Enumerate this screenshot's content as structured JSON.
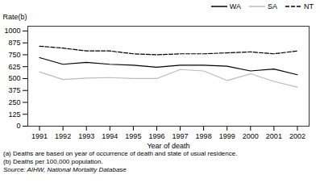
{
  "chart_data": {
    "type": "line",
    "x": [
      1991,
      1992,
      1993,
      1994,
      1995,
      1996,
      1997,
      1998,
      1999,
      2000,
      2001,
      2002
    ],
    "series": [
      {
        "name": "WA",
        "color": "#000000",
        "line_style": "solid",
        "values": [
          720,
          650,
          670,
          650,
          640,
          620,
          640,
          640,
          630,
          580,
          600,
          540
        ]
      },
      {
        "name": "SA",
        "color": "#bbbbbb",
        "line_style": "solid",
        "values": [
          570,
          490,
          505,
          510,
          500,
          500,
          595,
          580,
          480,
          550,
          470,
          410
        ]
      },
      {
        "name": "NT",
        "color": "#000000",
        "line_style": "dashed",
        "values": [
          840,
          820,
          790,
          790,
          760,
          750,
          760,
          760,
          770,
          780,
          760,
          790
        ]
      }
    ],
    "xlabel": "Year of death",
    "ylabel": "Rate(b)",
    "xlim": [
      1990.5,
      2002.5
    ],
    "xticks": [
      1991,
      1992,
      1993,
      1994,
      1995,
      1996,
      1997,
      1998,
      1999,
      2000,
      2001,
      2002
    ],
    "ylim": [
      0,
      1050
    ],
    "yticks": [
      0,
      125,
      250,
      375,
      500,
      625,
      750,
      875,
      1000
    ],
    "grid": false,
    "legend": "upper right",
    "annotations": [
      "(a) Deaths are based on year of occurrence of death and state of usual residence.",
      "(b) Deaths per 100,000 population."
    ],
    "source": "Source: AIHW, National Mortality Database"
  }
}
